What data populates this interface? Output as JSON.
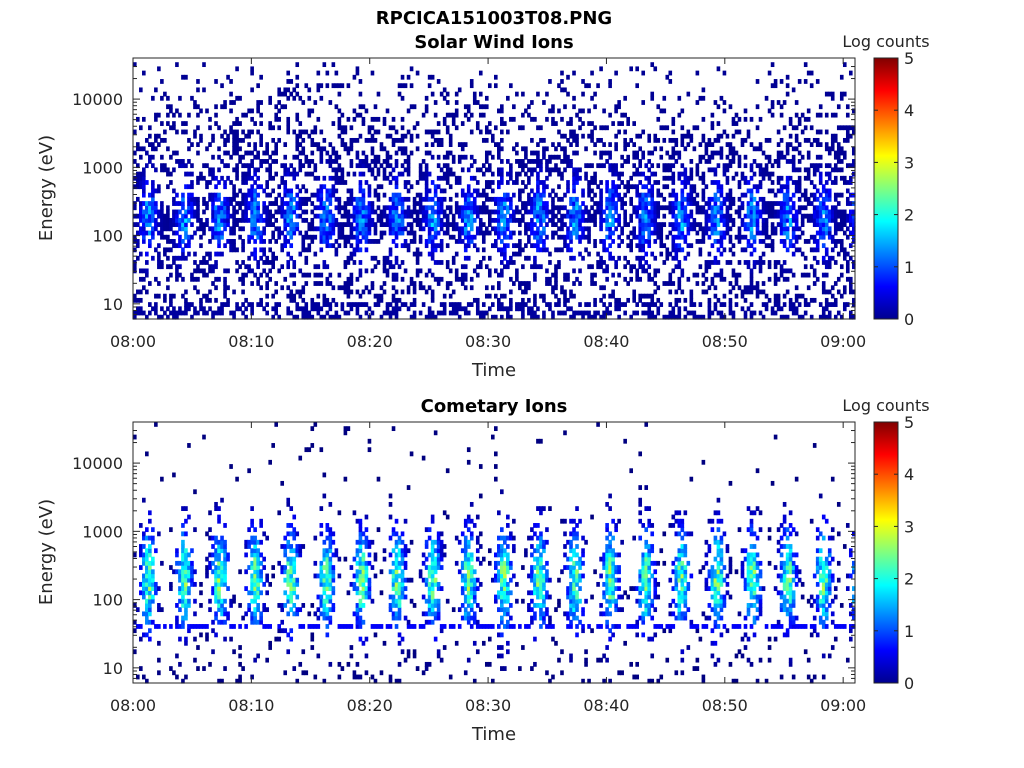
{
  "figure": {
    "title": "RPCICA151003T08.PNG"
  },
  "chart_data": [
    {
      "type": "heatmap",
      "title": "Solar Wind Ions",
      "xlabel": "Time",
      "ylabel": "Energy (eV)",
      "xlim": [
        "08:00",
        "09:01"
      ],
      "x_ticks": [
        "08:00",
        "08:10",
        "08:20",
        "08:30",
        "08:40",
        "08:50",
        "09:00"
      ],
      "y_scale": "log",
      "ylim": [
        6,
        40000
      ],
      "y_ticks": [
        10,
        100,
        1000,
        10000
      ],
      "y_tick_labels": [
        "10",
        "100",
        "1000",
        "10000"
      ],
      "colorbar": {
        "label": "Log counts",
        "min": 0,
        "max": 5,
        "ticks": [
          "0",
          "1",
          "2",
          "3",
          "4",
          "5"
        ],
        "colormap": "jet"
      },
      "features": {
        "sparse_high_energy_max_eV": 30000,
        "dense_band_eV": [
          60,
          600
        ],
        "peak_log_counts": 2.1,
        "burst_period_min": 3
      },
      "grid": false
    },
    {
      "type": "heatmap",
      "title": "Cometary Ions",
      "xlabel": "Time",
      "ylabel": "Energy (eV)",
      "xlim": [
        "08:00",
        "09:01"
      ],
      "x_ticks": [
        "08:00",
        "08:10",
        "08:20",
        "08:30",
        "08:40",
        "08:50",
        "09:00"
      ],
      "y_scale": "log",
      "ylim": [
        6,
        40000
      ],
      "y_ticks": [
        10,
        100,
        1000,
        10000
      ],
      "y_tick_labels": [
        "10",
        "100",
        "1000",
        "10000"
      ],
      "colorbar": {
        "label": "Log counts",
        "min": 0,
        "max": 5,
        "ticks": [
          "0",
          "1",
          "2",
          "3",
          "4",
          "5"
        ],
        "colormap": "jet"
      },
      "features": {
        "dense_band_eV": [
          40,
          1000
        ],
        "peak_log_counts": 2.7,
        "burst_period_min": 3,
        "constant_line_eV": 40
      },
      "grid": false
    }
  ]
}
